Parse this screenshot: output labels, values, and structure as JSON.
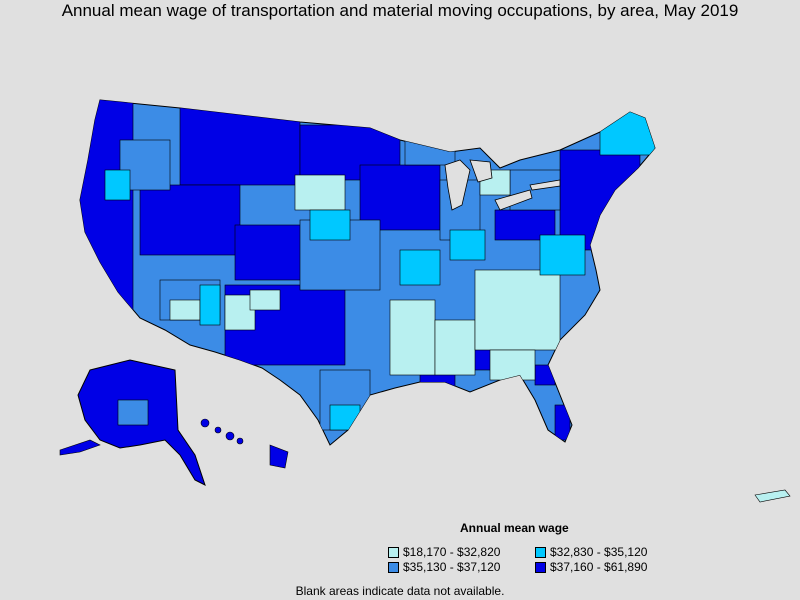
{
  "title": "Annual mean wage of transportation and material moving occupations, by area, May 2019",
  "legend": {
    "title": "Annual mean wage",
    "items": [
      {
        "label": "$18,170 - $32,820",
        "color": "#b8f0f0"
      },
      {
        "label": "$32,830 - $35,120",
        "color": "#00c8ff"
      },
      {
        "label": "$35,130 - $37,120",
        "color": "#3c8ce6"
      },
      {
        "label": "$37,160 - $61,890",
        "color": "#0000e6"
      }
    ]
  },
  "note": "Blank areas indicate data not available."
}
